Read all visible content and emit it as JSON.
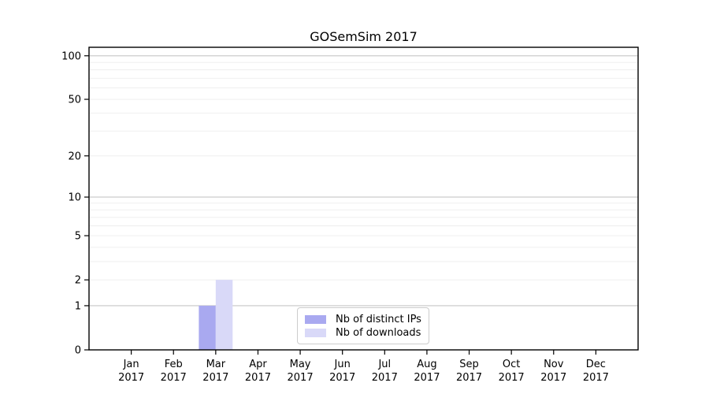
{
  "chart_data": {
    "type": "bar",
    "title": "GOSemSim 2017",
    "xlabel": "",
    "ylabel": "",
    "categories": [
      "Jan",
      "Feb",
      "Mar",
      "Apr",
      "May",
      "Jun",
      "Jul",
      "Aug",
      "Sep",
      "Oct",
      "Nov",
      "Dec"
    ],
    "category_year": "2017",
    "series": [
      {
        "name": "Nb of distinct IPs",
        "color": "#a9a9f0",
        "values": [
          0,
          0,
          1,
          0,
          0,
          0,
          0,
          0,
          0,
          0,
          0,
          0
        ]
      },
      {
        "name": "Nb of downloads",
        "color": "#d9d9f8",
        "values": [
          0,
          0,
          2,
          0,
          0,
          0,
          0,
          0,
          0,
          0,
          0,
          0
        ]
      }
    ],
    "y_axis": {
      "scale": "log1p",
      "tick_values": [
        0,
        1,
        2,
        5,
        10,
        20,
        50,
        100
      ],
      "major_gridlines": [
        1,
        10,
        100
      ],
      "minor_gridlines": [
        2,
        3,
        4,
        5,
        6,
        7,
        8,
        9,
        20,
        30,
        40,
        50,
        60,
        70,
        80,
        90
      ],
      "ylim": [
        0,
        114.4
      ]
    },
    "grid": true,
    "legend_position": "lower center"
  },
  "colors": {
    "background": "#ffffff",
    "spine": "#000000",
    "text": "#000000",
    "grid_major": "#c6c6c6",
    "grid_minor": "#ededed",
    "legend_border": "#cccccc",
    "legend_background": "#ffffff"
  }
}
